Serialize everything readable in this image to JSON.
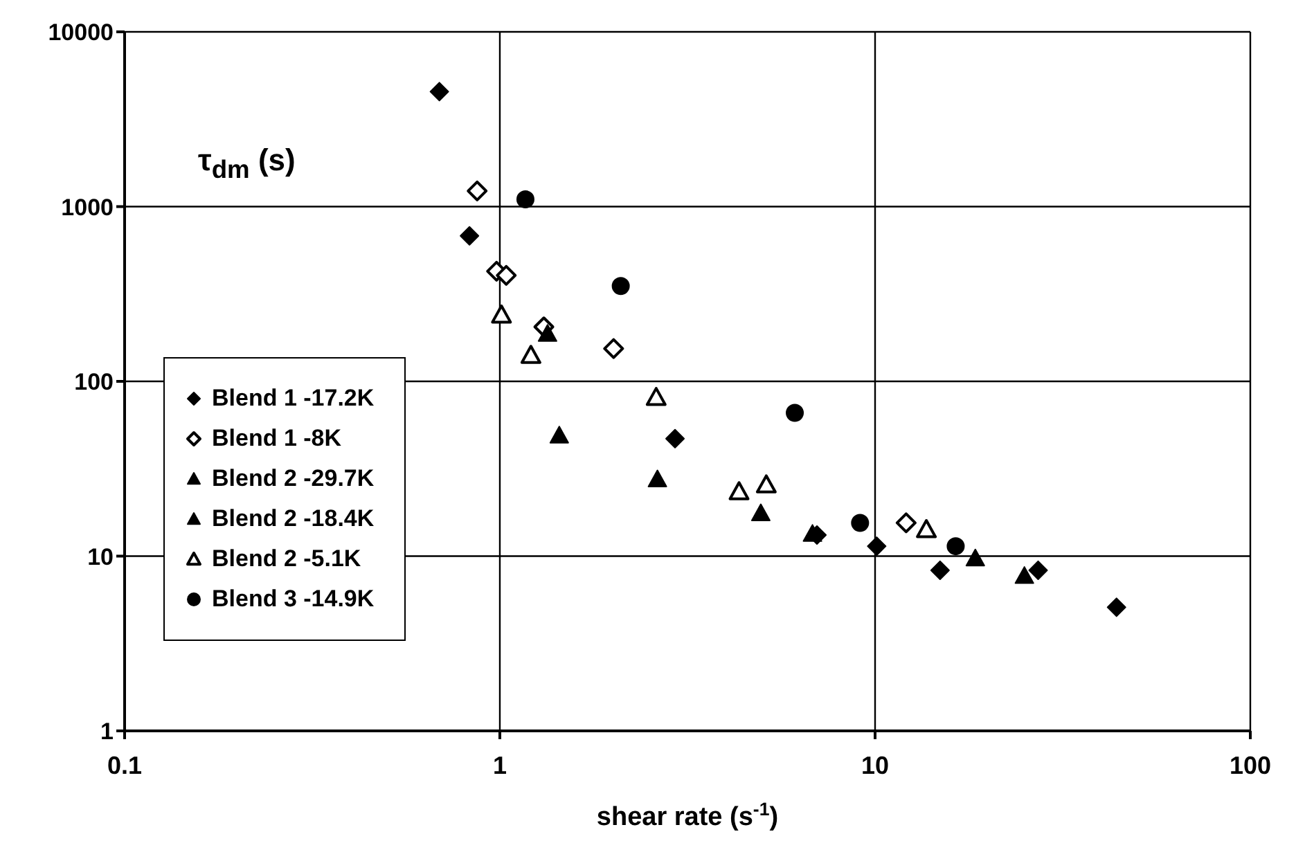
{
  "chart_data": {
    "type": "scatter",
    "xlabel": "shear rate (s$^{-1}$)",
    "ylabel": "τ$_{dm}$ (s)",
    "log": "xy",
    "xlim": [
      0.1,
      100
    ],
    "xticks": [
      0.1,
      1,
      10,
      100
    ],
    "ylim": [
      1,
      10000
    ],
    "yticks": [
      1,
      10,
      100,
      1000,
      10000
    ],
    "grid": true,
    "legend": "left",
    "series": [
      {
        "name": "Blend 1 -17.2K",
        "color": "#000000",
        "marker": "diamond",
        "x": [
          0.69,
          0.83,
          2.93,
          7.0,
          10.1,
          14.9,
          27.2,
          44
        ],
        "values": [
          4550,
          680,
          47,
          13.2,
          11.4,
          8.3,
          8.3,
          5.1
        ]
      },
      {
        "name": "Blend 1 -8K",
        "color": "#ffffff",
        "marker": "diamond",
        "x": [
          0.87,
          0.98,
          1.04,
          1.31,
          2.01,
          12.1
        ],
        "values": [
          1230,
          427,
          404,
          205,
          154,
          15.5
        ]
      },
      {
        "name": "Blend 2 -29.7K",
        "color": "#000000",
        "marker": "triangle",
        "x": [
          1.34,
          1.44,
          2.63,
          4.96
        ],
        "values": [
          187,
          49,
          27.5,
          17.6
        ]
      },
      {
        "name": "Blend 2 -18.4K",
        "color": "#000000",
        "marker": "triangle",
        "x": [
          6.81,
          18.5,
          25
        ],
        "values": [
          13.4,
          9.7,
          7.7
        ]
      },
      {
        "name": "Blend 2 -5.1K",
        "color": "#ffffff",
        "marker": "triangle",
        "x": [
          1.01,
          1.21,
          2.61,
          4.34,
          5.13,
          13.7
        ],
        "values": [
          240,
          141,
          81,
          23.4,
          25.6,
          14.2
        ]
      },
      {
        "name": "Blend 3 -14.9K",
        "color": "#000000",
        "marker": "circle",
        "x": [
          1.17,
          2.1,
          6.11,
          9.12,
          16.4
        ],
        "values": [
          1100,
          351,
          66,
          15.5,
          11.4
        ]
      }
    ]
  }
}
